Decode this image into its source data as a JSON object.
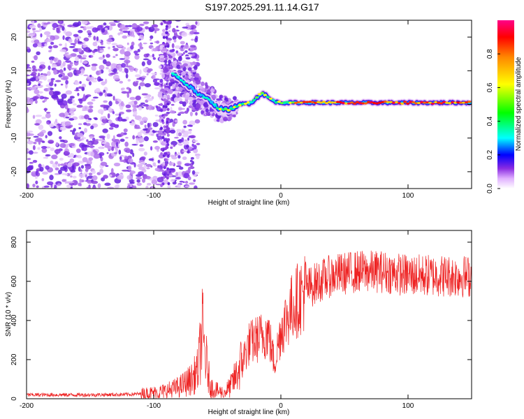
{
  "title": "S197.2025.291.11.14.G17",
  "chart_data": [
    {
      "type": "heatmap",
      "title": "S197.2025.291.11.14.G17",
      "xlabel": "Height of straight line (km)",
      "ylabel": "Frequency (Hz)",
      "xlim": [
        -200,
        150
      ],
      "ylim": [
        -25,
        25
      ],
      "xticks": [
        -200,
        -100,
        0,
        100
      ],
      "yticks": [
        20,
        10,
        0,
        -10,
        -20
      ],
      "colorbar": {
        "label": "Normalized spectral amplitude",
        "range": [
          0.0,
          1.0
        ],
        "ticks": [
          "0.0",
          "0.2",
          "0.4",
          "0.6",
          "0.8"
        ]
      },
      "ridge": {
        "description": "strong signal ridge frequency (Hz) vs height (km)",
        "x": [
          -90,
          -85,
          -80,
          -75,
          -70,
          -65,
          -60,
          -55,
          -50,
          -45,
          -40,
          -35,
          -30,
          -25,
          -20,
          -15,
          -10,
          -5,
          0,
          10,
          20,
          40,
          60,
          80,
          100,
          120,
          150
        ],
        "y": [
          10,
          9,
          8,
          6,
          5,
          3,
          2,
          1,
          -1,
          -1.5,
          -1.5,
          -0.5,
          0,
          0.5,
          1.5,
          3.5,
          2,
          0.8,
          0.5,
          0.5,
          0.5,
          0.5,
          0.5,
          0.5,
          0.5,
          0.5,
          0.5
        ]
      },
      "noise_region_x": [
        -200,
        -65
      ],
      "colors": [
        "#ff00ff",
        "#0000ff",
        "#00ffff",
        "#00ff00",
        "#ffff00",
        "#ff0000"
      ]
    },
    {
      "type": "line",
      "xlabel": "Height of straight line (km)",
      "ylabel": "SNR (10 * v/v)",
      "xlim": [
        -200,
        150
      ],
      "ylim": [
        0,
        860
      ],
      "xticks": [
        -200,
        -100,
        0,
        100
      ],
      "yticks": [
        0,
        200,
        400,
        600,
        800
      ],
      "color": "#ee2222",
      "series": [
        {
          "name": "SNR",
          "x": [
            -200,
            -150,
            -120,
            -110,
            -100,
            -90,
            -80,
            -75,
            -70,
            -65,
            -62,
            -60,
            -57,
            -55,
            -50,
            -45,
            -40,
            -35,
            -30,
            -25,
            -20,
            -15,
            -10,
            -5,
            0,
            5,
            10,
            20,
            30,
            40,
            50,
            60,
            80,
            100,
            120,
            150
          ],
          "y": [
            20,
            20,
            22,
            25,
            30,
            40,
            60,
            80,
            100,
            150,
            350,
            250,
            120,
            60,
            40,
            30,
            60,
            120,
            200,
            280,
            300,
            320,
            340,
            180,
            350,
            420,
            480,
            560,
            600,
            630,
            640,
            650,
            650,
            630,
            630,
            625
          ]
        }
      ]
    }
  ]
}
